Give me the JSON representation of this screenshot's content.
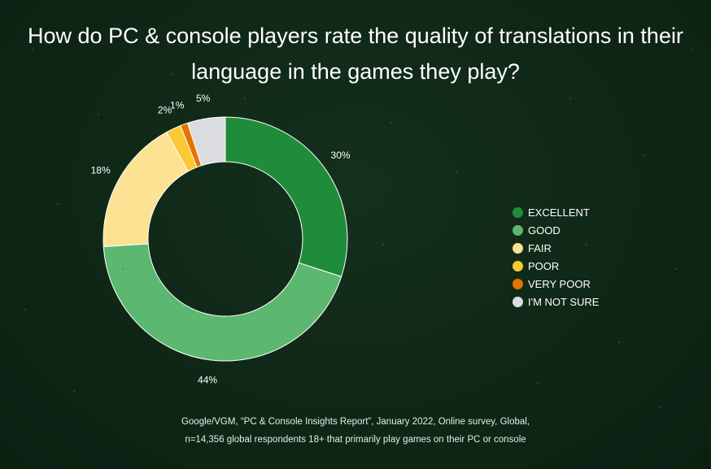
{
  "title_lines": [
    "How do PC & console players rate the quality of translations in their",
    "language in the games they play?"
  ],
  "source_lines": [
    "Google/VGM, “PC & Console Insights Report”, January 2022, Online survey, Global,",
    "n=14,356 global respondents 18+ that primarily play games on their PC or console"
  ],
  "colors": {
    "background": "#102818",
    "excellent": "#1e8c3a",
    "good": "#5cb870",
    "fair": "#fde293",
    "poor": "#fcc934",
    "very_poor": "#e37400",
    "not_sure": "#dadce0"
  },
  "chart_data": {
    "type": "pie",
    "donut": true,
    "legend_position": "right",
    "slices": [
      {
        "name": "EXCELLENT",
        "value": 30,
        "label": "30%",
        "color": "#1e8c3a"
      },
      {
        "name": "GOOD",
        "value": 44,
        "label": "44%",
        "color": "#5cb870"
      },
      {
        "name": "FAIR",
        "value": 18,
        "label": "18%",
        "color": "#fde293"
      },
      {
        "name": "POOR",
        "value": 2,
        "label": "2%",
        "color": "#fcc934"
      },
      {
        "name": "VERY POOR",
        "value": 1,
        "label": "1%",
        "color": "#e37400"
      },
      {
        "name": "I'M NOT SURE",
        "value": 5,
        "label": "5%",
        "color": "#dadce0"
      }
    ]
  }
}
